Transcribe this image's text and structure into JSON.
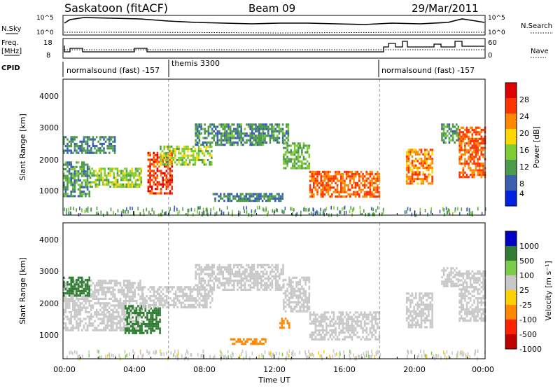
{
  "header": {
    "site": "Saskatoon (fitACF)",
    "beam": "Beam 09",
    "date": "29/Mar/2011"
  },
  "strip_panels": {
    "nsky_label": "N.Sky",
    "nsky_ticks": [
      "10^5",
      "10^0"
    ],
    "nsearch_label": "N.Search",
    "nsearch_ticks": [
      "10^5",
      "10^0"
    ],
    "freq_label_line1": "Freq.",
    "freq_label_line2": "[MHz]",
    "freq_ticks": [
      "18",
      "8"
    ],
    "nave_ticks": [
      "60",
      "0"
    ],
    "nave_label": "Nave",
    "cpid_label": "CPID",
    "cpid_segments": [
      {
        "label": "normalsound (fast) -157",
        "start_hour": 0
      },
      {
        "label": "themis 3300",
        "start_hour": 6
      },
      {
        "label": "normalsound (fast) -157",
        "start_hour": 18
      }
    ]
  },
  "power_panel": {
    "ylabel": "Slant Range [km]",
    "yticks": [
      "4000",
      "3000",
      "2000",
      "1000"
    ],
    "colorbar_label": "Power [dB]",
    "colorbar_ticks": [
      "28",
      "24",
      "20",
      "16",
      "12",
      "8",
      "4"
    ]
  },
  "velocity_panel": {
    "ylabel": "Slant Range [km]",
    "yticks": [
      "4000",
      "3000",
      "2000",
      "1000"
    ],
    "colorbar_label": "Velocity [m s⁻¹]",
    "colorbar_ticks": [
      "1000",
      "500",
      "100",
      "25",
      "-25",
      "-100",
      "-500",
      "-1000"
    ]
  },
  "xaxis": {
    "label": "Time UT",
    "ticks": [
      "00:00",
      "04:00",
      "08:00",
      "12:00",
      "16:00",
      "20:00",
      "00:00"
    ]
  },
  "colors": {
    "power_scale": [
      "#0022e0",
      "#3a5fb0",
      "#4c9a4c",
      "#7fcc33",
      "#ffd700",
      "#ff8800",
      "#ff3300",
      "#e00000"
    ],
    "velocity_scale": [
      "#0000c8",
      "#2e7d32",
      "#7ccc4c",
      "#c8c8c8",
      "#ffd000",
      "#ff8800",
      "#ff2200",
      "#c00000"
    ],
    "scatter_gray": "#c8c8c8"
  },
  "chart_data": [
    {
      "type": "heatmap",
      "title": "",
      "xlabel": "Time UT",
      "ylabel": "Slant Range [km]",
      "xlim": [
        0,
        24
      ],
      "ylim": [
        200,
        4500
      ],
      "colorbar": "Power [dB]",
      "colorbar_range": [
        0,
        32
      ],
      "regions": [
        {
          "t0": 0.0,
          "t1": 1.5,
          "r0": 800,
          "r1": 1900,
          "value": 10
        },
        {
          "t0": 0.0,
          "t1": 3.0,
          "r0": 2200,
          "r1": 2700,
          "value": 8
        },
        {
          "t0": 1.5,
          "t1": 4.5,
          "r0": 1100,
          "r1": 1700,
          "value": 14
        },
        {
          "t0": 4.8,
          "t1": 6.2,
          "r0": 900,
          "r1": 2200,
          "value": 26
        },
        {
          "t0": 5.5,
          "t1": 8.5,
          "r0": 1800,
          "r1": 2400,
          "value": 14
        },
        {
          "t0": 7.5,
          "t1": 11.5,
          "r0": 2400,
          "r1": 3100,
          "value": 9
        },
        {
          "t0": 11.0,
          "t1": 12.8,
          "r0": 2500,
          "r1": 3100,
          "value": 10
        },
        {
          "t0": 12.5,
          "t1": 14.0,
          "r0": 1700,
          "r1": 2500,
          "value": 12
        },
        {
          "t0": 14.0,
          "t1": 18.0,
          "r0": 800,
          "r1": 1600,
          "value": 24
        },
        {
          "t0": 8.5,
          "t1": 12.5,
          "r0": 650,
          "r1": 900,
          "value": 8
        },
        {
          "t0": 19.5,
          "t1": 21.0,
          "r0": 1200,
          "r1": 2300,
          "value": 22
        },
        {
          "t0": 21.5,
          "t1": 22.5,
          "r0": 2500,
          "r1": 3100,
          "value": 10
        },
        {
          "t0": 22.5,
          "t1": 24.0,
          "r0": 1400,
          "r1": 3000,
          "value": 24
        }
      ]
    },
    {
      "type": "heatmap",
      "title": "",
      "xlabel": "Time UT",
      "ylabel": "Slant Range [km]",
      "xlim": [
        0,
        24
      ],
      "ylim": [
        200,
        4500
      ],
      "colorbar": "Velocity [m s⁻¹]",
      "colorbar_ticks": [
        1000,
        500,
        100,
        25,
        -25,
        -100,
        -500,
        -1000
      ],
      "regions": [
        {
          "t0": 0.0,
          "t1": 4.5,
          "r0": 1100,
          "r1": 2700,
          "value": 0
        },
        {
          "t0": 0.0,
          "t1": 1.5,
          "r0": 2200,
          "r1": 2800,
          "value": 150
        },
        {
          "t0": 3.5,
          "t1": 5.5,
          "r0": 1000,
          "r1": 1900,
          "value": 300
        },
        {
          "t0": 4.5,
          "t1": 8.5,
          "r0": 1800,
          "r1": 2500,
          "value": 0
        },
        {
          "t0": 7.5,
          "t1": 12.5,
          "r0": 2400,
          "r1": 3200,
          "value": 0
        },
        {
          "t0": 12.5,
          "t1": 14.0,
          "r0": 1700,
          "r1": 2800,
          "value": 0
        },
        {
          "t0": 12.3,
          "t1": 12.9,
          "r0": 1200,
          "r1": 1500,
          "value": -300
        },
        {
          "t0": 14.0,
          "t1": 18.0,
          "r0": 800,
          "r1": 1700,
          "value": 0
        },
        {
          "t0": 9.5,
          "t1": 11.5,
          "r0": 650,
          "r1": 850,
          "value": -150
        },
        {
          "t0": 19.5,
          "t1": 21.0,
          "r0": 1200,
          "r1": 2300,
          "value": 0
        },
        {
          "t0": 21.5,
          "t1": 22.5,
          "r0": 2500,
          "r1": 3100,
          "value": 0
        },
        {
          "t0": 22.5,
          "t1": 24.0,
          "r0": 1400,
          "r1": 3000,
          "value": 0
        }
      ]
    }
  ]
}
